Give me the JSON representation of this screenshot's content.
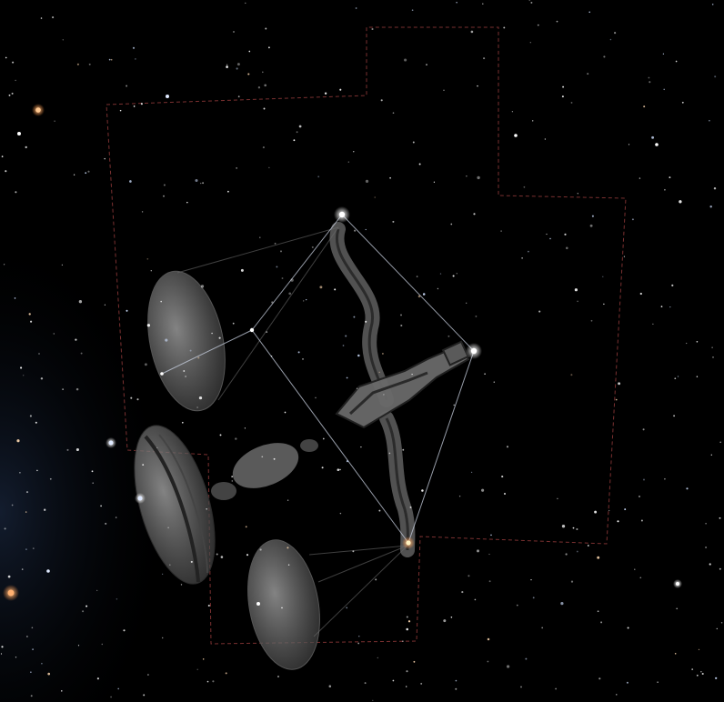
{
  "scene": {
    "kind": "planetarium-sky-view",
    "background_color": "#000000",
    "milky_way_tint": "#0f1a2e",
    "boundary_color": "#7a3030",
    "stick_line_color": "#c8d0e0",
    "art_color": "#8a8a8a",
    "star_colors": {
      "white": "#ffffff",
      "blue": "#cfe0ff",
      "orange": "#ffb070"
    }
  }
}
